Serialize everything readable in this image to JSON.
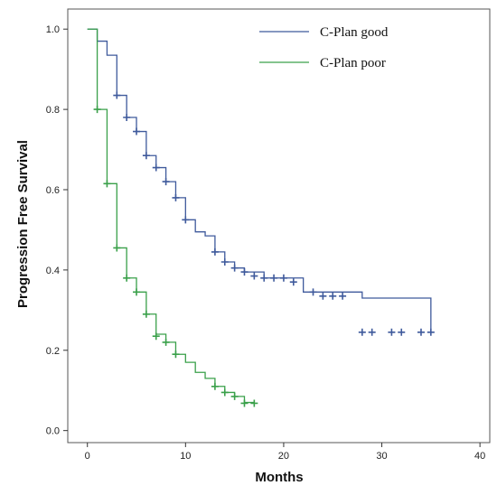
{
  "chart_data": {
    "type": "line",
    "subtype": "kaplan-meier step plot",
    "title": "",
    "xlabel": "Months",
    "ylabel": "Progression Free Survival",
    "xlim": [
      -2,
      41
    ],
    "ylim": [
      -0.03,
      1.05
    ],
    "xticks": [
      0,
      10,
      20,
      30,
      40
    ],
    "yticks": [
      0.0,
      0.2,
      0.4,
      0.6,
      0.8,
      1.0
    ],
    "ytick_labels": [
      "0.0",
      "0.2",
      "0.4",
      "0.6",
      "0.8",
      "1.0"
    ],
    "grid": false,
    "legend": "top-right",
    "series": [
      {
        "name": "C-Plan good",
        "color": "#3f5a9c",
        "step_x": [
          0,
          1,
          2,
          3,
          4,
          5,
          6,
          7,
          8,
          9,
          10,
          11,
          12,
          13,
          14,
          15,
          16,
          18,
          22,
          28,
          35
        ],
        "step_y": [
          1.0,
          0.97,
          0.935,
          0.835,
          0.78,
          0.745,
          0.685,
          0.655,
          0.62,
          0.58,
          0.525,
          0.495,
          0.485,
          0.445,
          0.42,
          0.405,
          0.395,
          0.38,
          0.345,
          0.33,
          0.245
        ],
        "censored_x": [
          3,
          4,
          5,
          6,
          7,
          8,
          9,
          10,
          13,
          14,
          15,
          16,
          17,
          18,
          19,
          20,
          21,
          23,
          24,
          25,
          26,
          28,
          29,
          31,
          32,
          34,
          35
        ],
        "censored_y": [
          0.835,
          0.78,
          0.745,
          0.685,
          0.655,
          0.62,
          0.58,
          0.525,
          0.445,
          0.42,
          0.405,
          0.395,
          0.385,
          0.38,
          0.38,
          0.38,
          0.37,
          0.345,
          0.335,
          0.335,
          0.335,
          0.245,
          0.245,
          0.245,
          0.245,
          0.245,
          0.245
        ]
      },
      {
        "name": "C-Plan poor",
        "color": "#3aa04a",
        "step_x": [
          0,
          1,
          2,
          3,
          4,
          5,
          6,
          7,
          8,
          9,
          10,
          11,
          12,
          13,
          14,
          15,
          16,
          17
        ],
        "step_y": [
          1.0,
          0.8,
          0.615,
          0.455,
          0.38,
          0.345,
          0.29,
          0.24,
          0.22,
          0.19,
          0.17,
          0.145,
          0.13,
          0.11,
          0.095,
          0.085,
          0.07,
          0.068
        ],
        "censored_x": [
          1,
          2,
          3,
          4,
          5,
          6,
          7,
          8,
          9,
          13,
          14,
          15,
          16,
          17
        ],
        "censored_y": [
          0.8,
          0.615,
          0.455,
          0.38,
          0.345,
          0.29,
          0.235,
          0.22,
          0.19,
          0.11,
          0.095,
          0.085,
          0.068,
          0.068
        ]
      }
    ]
  }
}
